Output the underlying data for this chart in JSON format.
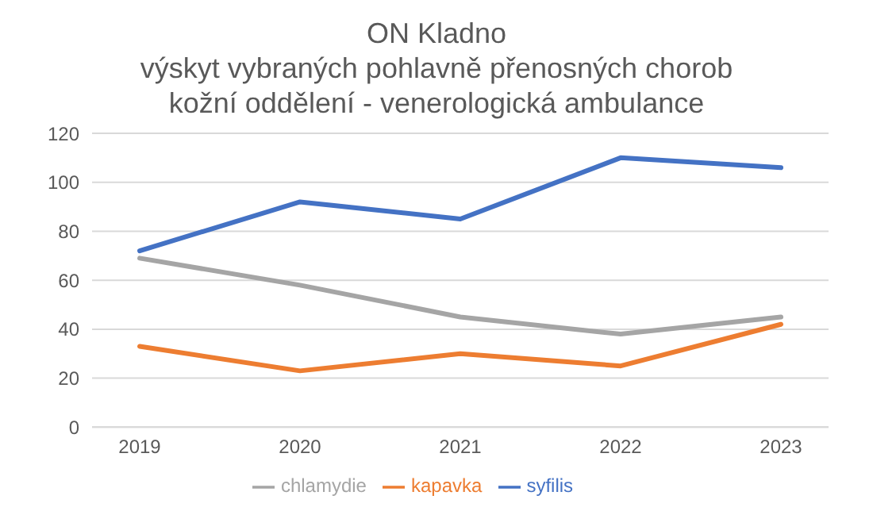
{
  "chart_data": {
    "type": "line",
    "title": "ON Kladno\nvýskyt vybraných pohlavně přenosných chorob\nkožní oddělení - venerologická ambulance",
    "categories": [
      "2019",
      "2020",
      "2021",
      "2022",
      "2023"
    ],
    "series": [
      {
        "name": "syfilis",
        "color": "#4472c4",
        "values": [
          72,
          92,
          85,
          110,
          106
        ]
      },
      {
        "name": "kapavka",
        "color": "#ed7d31",
        "values": [
          33,
          23,
          30,
          25,
          42
        ]
      },
      {
        "name": "chlamydie",
        "color": "#a5a5a5",
        "values": [
          69,
          58,
          45,
          38,
          45
        ]
      }
    ],
    "ylim": [
      0,
      120
    ],
    "yticks": [
      0,
      20,
      40,
      60,
      80,
      100,
      120
    ],
    "grid": "y",
    "legend": "bottom",
    "marker": "none",
    "line_style": "solid"
  }
}
